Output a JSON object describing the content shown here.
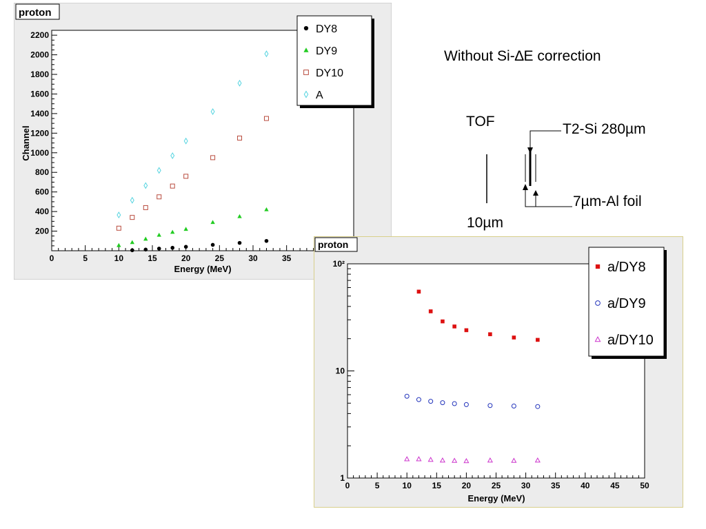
{
  "annotations": {
    "heading": "Without Si-∆E correction",
    "tof": "TOF",
    "t2si": "T2-Si 280µm",
    "alfoil": "7µm-Al foil",
    "thick": "10µm"
  },
  "chart_data": [
    {
      "type": "scatter",
      "title": "proton",
      "xlabel": "Energy (MeV)",
      "ylabel": "Channel",
      "xlim": [
        0,
        45
      ],
      "ylim": [
        0,
        2250
      ],
      "yscale": "linear",
      "xticks": [
        0,
        5,
        10,
        15,
        20,
        25,
        30,
        35,
        40
      ],
      "yticks": [
        200,
        400,
        600,
        800,
        1000,
        1200,
        1400,
        1600,
        1800,
        2000,
        2200
      ],
      "ytick_labels": [
        "200",
        "400",
        "600",
        "800",
        "1000",
        "1200",
        "1400",
        "1600",
        "1800",
        "2000",
        "2200"
      ],
      "legend_position": "top-right",
      "series": [
        {
          "name": "DY8",
          "marker": "circle",
          "color": "#000000",
          "x": [
            12,
            14,
            16,
            18,
            20,
            24,
            28,
            32
          ],
          "y": [
            5,
            12,
            22,
            30,
            40,
            60,
            80,
            100
          ]
        },
        {
          "name": "DY9",
          "marker": "triangle",
          "color": "#22cc22",
          "x": [
            10,
            12,
            14,
            16,
            18,
            20,
            24,
            28,
            32
          ],
          "y": [
            55,
            85,
            120,
            160,
            190,
            220,
            290,
            350,
            420
          ]
        },
        {
          "name": "DY10",
          "marker": "square-open",
          "color": "#b84a3c",
          "x": [
            10,
            12,
            14,
            16,
            18,
            20,
            24,
            28,
            32
          ],
          "y": [
            230,
            340,
            440,
            550,
            660,
            760,
            950,
            1150,
            1350
          ]
        },
        {
          "name": "A",
          "marker": "diamond-open",
          "color": "#55d4e0",
          "x": [
            10,
            12,
            14,
            16,
            18,
            20,
            24,
            28,
            32
          ],
          "y": [
            365,
            515,
            665,
            820,
            970,
            1120,
            1420,
            1710,
            2010
          ]
        }
      ]
    },
    {
      "type": "scatter",
      "title": "proton",
      "xlabel": "Energy (MeV)",
      "ylabel": "",
      "xlim": [
        0,
        50
      ],
      "ylim": [
        1,
        100
      ],
      "yscale": "log",
      "xticks": [
        0,
        5,
        10,
        15,
        20,
        25,
        30,
        35,
        40,
        45,
        50
      ],
      "yticks": [
        1,
        10,
        100
      ],
      "ytick_labels": [
        "1",
        "10",
        "10²"
      ],
      "legend_position": "top-right",
      "series": [
        {
          "name": "a/DY8",
          "marker": "square",
          "color": "#dd1111",
          "x": [
            12,
            14,
            16,
            18,
            20,
            24,
            28,
            32
          ],
          "y": [
            55,
            36,
            29,
            26,
            24,
            22,
            20.5,
            19.5
          ]
        },
        {
          "name": "a/DY9",
          "marker": "circle-open",
          "color": "#2233bb",
          "x": [
            10,
            12,
            14,
            16,
            18,
            20,
            24,
            28,
            32
          ],
          "y": [
            5.8,
            5.4,
            5.2,
            5.05,
            4.95,
            4.85,
            4.75,
            4.7,
            4.65
          ]
        },
        {
          "name": "a/DY10",
          "marker": "triangle-open",
          "color": "#cc33cc",
          "x": [
            10,
            12,
            14,
            16,
            18,
            20,
            24,
            28,
            32
          ],
          "y": [
            1.5,
            1.5,
            1.48,
            1.46,
            1.45,
            1.44,
            1.46,
            1.45,
            1.46
          ]
        }
      ]
    }
  ]
}
